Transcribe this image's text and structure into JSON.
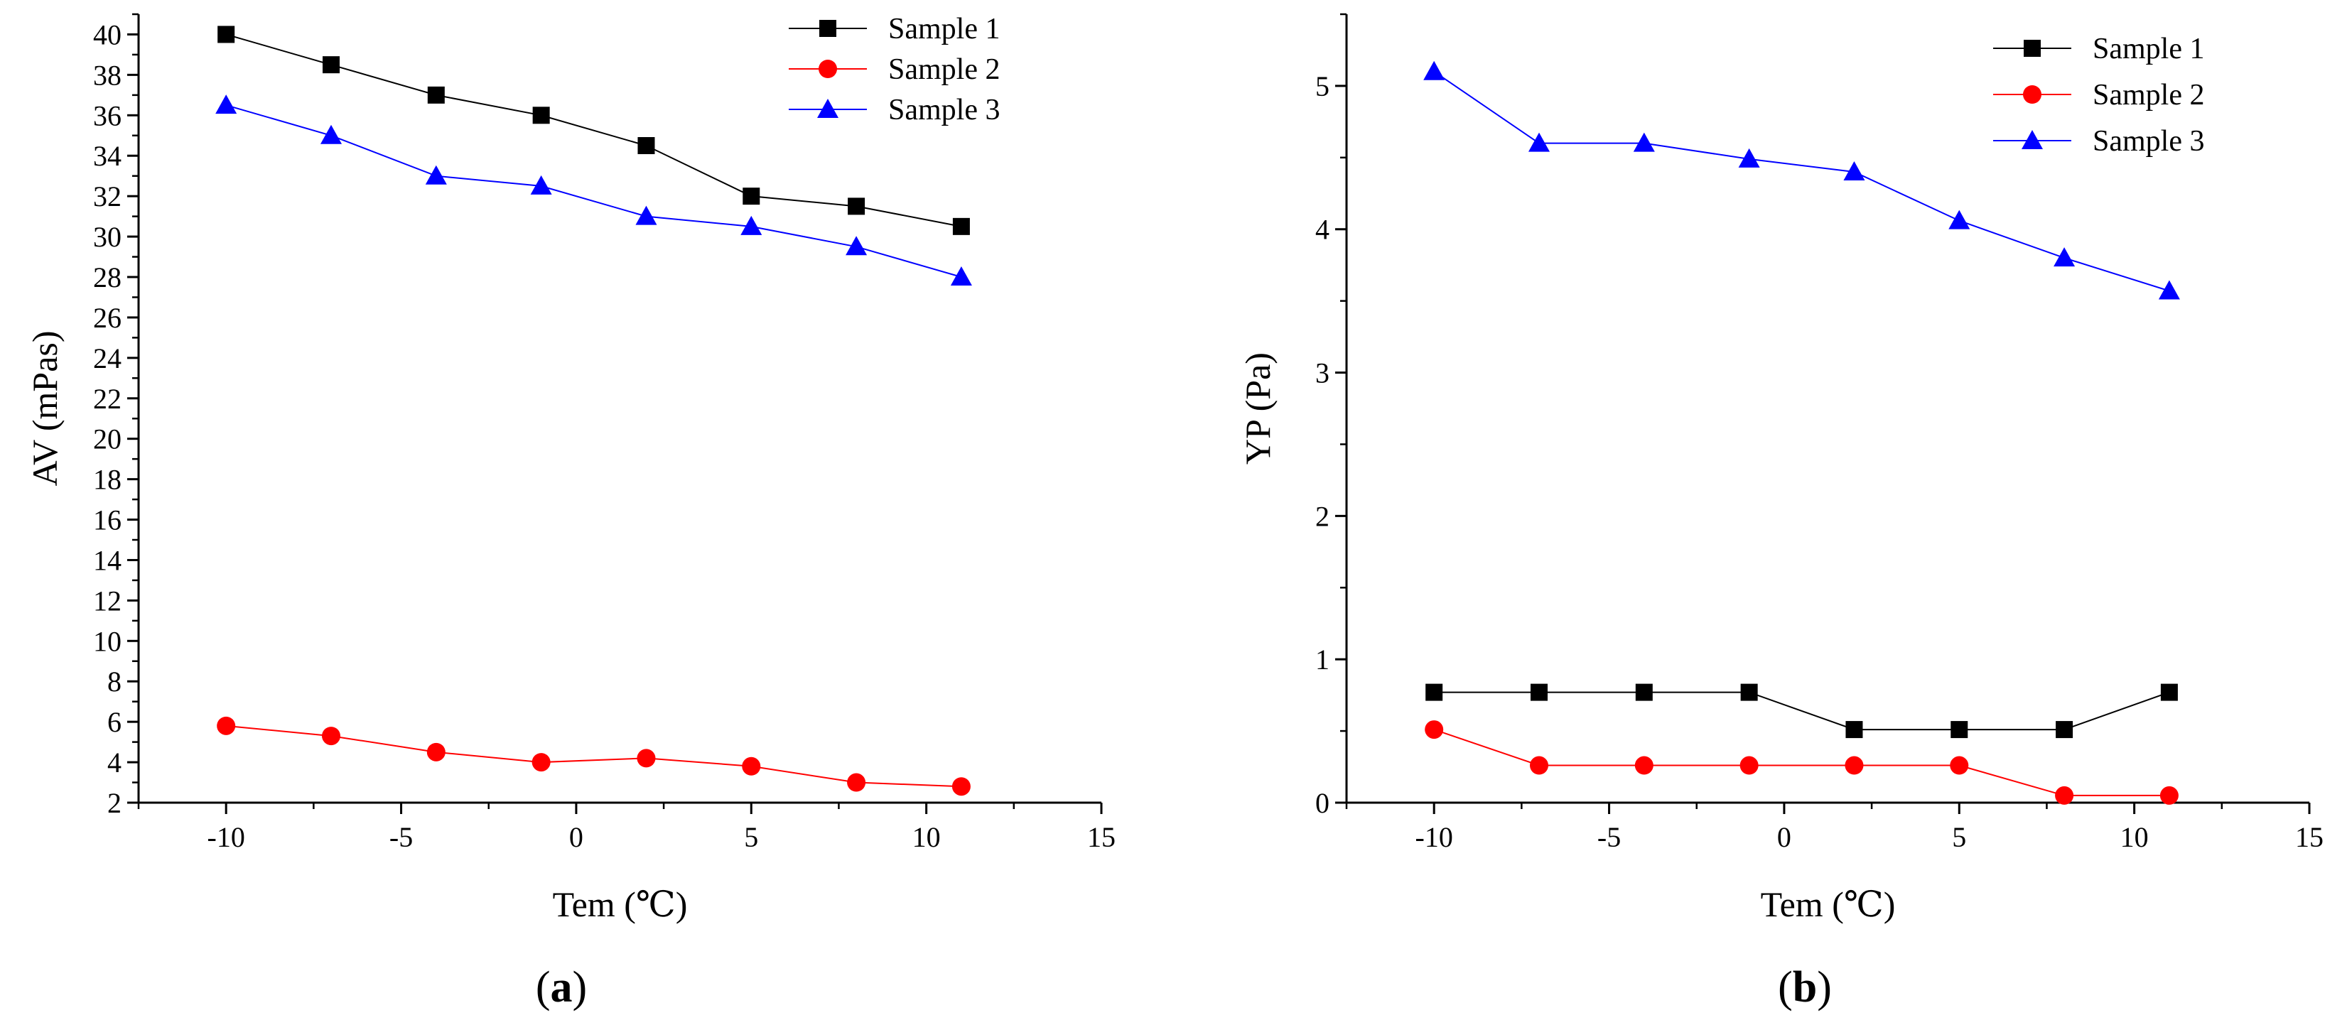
{
  "chart_data": [
    {
      "type": "line",
      "panel_label": "a",
      "xlabel": "Tem (℃)",
      "ylabel": "AV (mPas)",
      "xlim": [
        -12.5,
        15
      ],
      "ylim": [
        2,
        41
      ],
      "xticks": [
        -10,
        -5,
        0,
        5,
        10,
        15
      ],
      "yticks": [
        2,
        4,
        6,
        8,
        10,
        12,
        14,
        16,
        18,
        20,
        22,
        24,
        26,
        28,
        30,
        32,
        34,
        36,
        38,
        40
      ],
      "x": [
        -10,
        -7,
        -4,
        -1,
        2,
        5,
        8,
        11
      ],
      "legend_position": "top-right",
      "series": [
        {
          "name": "Sample 1",
          "color": "#000000",
          "marker": "square",
          "line": true,
          "values": [
            40,
            38.5,
            37,
            36,
            34.5,
            32,
            31.5,
            30.5
          ]
        },
        {
          "name": "Sample 2",
          "color": "#ff0000",
          "marker": "circle",
          "line": true,
          "values": [
            5.8,
            5.3,
            4.5,
            4.0,
            4.2,
            3.8,
            3.0,
            2.8
          ]
        },
        {
          "name": "Sample 3",
          "color": "#0000ff",
          "marker": "triangle",
          "line": true,
          "values": [
            36.5,
            35,
            33,
            32.5,
            31,
            30.5,
            29.5,
            28
          ]
        }
      ]
    },
    {
      "type": "line",
      "panel_label": "b",
      "xlabel": "Tem (℃)",
      "ylabel": "YP (Pa)",
      "xlim": [
        -12.5,
        15
      ],
      "ylim": [
        0,
        5.5
      ],
      "xticks": [
        -10,
        -5,
        0,
        5,
        10,
        15
      ],
      "yticks": [
        0,
        1,
        2,
        3,
        4,
        5
      ],
      "x": [
        -10,
        -7,
        -4,
        -1,
        2,
        5,
        8,
        11
      ],
      "legend_position": "top-right",
      "series": [
        {
          "name": "Sample 1",
          "color": "#000000",
          "marker": "square",
          "line": true,
          "values": [
            0.77,
            0.77,
            0.77,
            0.77,
            0.51,
            0.51,
            0.51,
            0.77
          ]
        },
        {
          "name": "Sample 2",
          "color": "#ff0000",
          "marker": "circle",
          "line": true,
          "values": [
            0.51,
            0.26,
            0.26,
            0.26,
            0.26,
            0.26,
            0.05,
            0.05
          ]
        },
        {
          "name": "Sample 3",
          "color": "#0000ff",
          "marker": "triangle",
          "line": true,
          "values": [
            5.1,
            4.6,
            4.6,
            4.49,
            4.4,
            4.06,
            3.8,
            3.57
          ]
        }
      ]
    }
  ]
}
